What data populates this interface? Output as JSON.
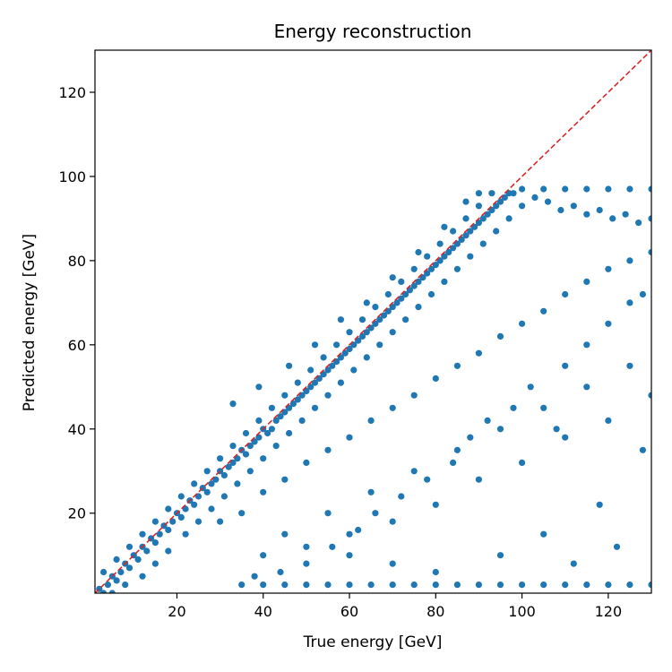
{
  "chart_data": {
    "type": "scatter",
    "title": "Energy reconstruction",
    "xlabel": "True energy [GeV]",
    "ylabel": "Predicted energy [GeV]",
    "xlim": [
      1,
      130
    ],
    "ylim": [
      1,
      130
    ],
    "xticks": [
      20,
      40,
      60,
      80,
      100,
      120
    ],
    "yticks": [
      20,
      40,
      60,
      80,
      100,
      120
    ],
    "grid": false,
    "colors": {
      "points": "#1f77b4",
      "reference_line": "#d62728",
      "axes": "#000000"
    },
    "reference_line": {
      "style": "dashed",
      "from": [
        1,
        1
      ],
      "to": [
        130,
        130
      ]
    },
    "series": [
      {
        "values_note_free": true,
        "points": [
          [
            2,
            2
          ],
          [
            3,
            1
          ],
          [
            4,
            3
          ],
          [
            5,
            5
          ],
          [
            6,
            4
          ],
          [
            7,
            6
          ],
          [
            8,
            8
          ],
          [
            9,
            7
          ],
          [
            10,
            10
          ],
          [
            11,
            9
          ],
          [
            12,
            12
          ],
          [
            13,
            11
          ],
          [
            14,
            14
          ],
          [
            15,
            13
          ],
          [
            16,
            15
          ],
          [
            17,
            17
          ],
          [
            18,
            16
          ],
          [
            19,
            18
          ],
          [
            20,
            20
          ],
          [
            21,
            19
          ],
          [
            22,
            21
          ],
          [
            23,
            23
          ],
          [
            24,
            22
          ],
          [
            25,
            24
          ],
          [
            26,
            26
          ],
          [
            27,
            25
          ],
          [
            28,
            27
          ],
          [
            29,
            28
          ],
          [
            30,
            30
          ],
          [
            31,
            29
          ],
          [
            32,
            31
          ],
          [
            33,
            32
          ],
          [
            34,
            33
          ],
          [
            35,
            35
          ],
          [
            36,
            34
          ],
          [
            37,
            36
          ],
          [
            38,
            37
          ],
          [
            39,
            38
          ],
          [
            40,
            40
          ],
          [
            41,
            39
          ],
          [
            42,
            40
          ],
          [
            43,
            42
          ],
          [
            44,
            43
          ],
          [
            45,
            44
          ],
          [
            46,
            45
          ],
          [
            47,
            46
          ],
          [
            48,
            47
          ],
          [
            49,
            48
          ],
          [
            50,
            49
          ],
          [
            51,
            50
          ],
          [
            52,
            51
          ],
          [
            53,
            52
          ],
          [
            54,
            53
          ],
          [
            55,
            54
          ],
          [
            56,
            55
          ],
          [
            57,
            56
          ],
          [
            58,
            57
          ],
          [
            59,
            58
          ],
          [
            60,
            59
          ],
          [
            61,
            60
          ],
          [
            62,
            61
          ],
          [
            63,
            62
          ],
          [
            64,
            63
          ],
          [
            65,
            64
          ],
          [
            66,
            65
          ],
          [
            67,
            66
          ],
          [
            68,
            67
          ],
          [
            69,
            68
          ],
          [
            70,
            69
          ],
          [
            71,
            70
          ],
          [
            72,
            71
          ],
          [
            73,
            72
          ],
          [
            74,
            73
          ],
          [
            75,
            74
          ],
          [
            76,
            75
          ],
          [
            77,
            76
          ],
          [
            78,
            77
          ],
          [
            79,
            78
          ],
          [
            80,
            79
          ],
          [
            81,
            80
          ],
          [
            82,
            81
          ],
          [
            83,
            82
          ],
          [
            84,
            83
          ],
          [
            85,
            84
          ],
          [
            86,
            85
          ],
          [
            87,
            86
          ],
          [
            88,
            87
          ],
          [
            89,
            88
          ],
          [
            90,
            89
          ],
          [
            91,
            90
          ],
          [
            92,
            91
          ],
          [
            93,
            92
          ],
          [
            94,
            93
          ],
          [
            95,
            94
          ],
          [
            96,
            95
          ],
          [
            97,
            96
          ],
          [
            98,
            96
          ],
          [
            100,
            97
          ],
          [
            105,
            97
          ],
          [
            110,
            97
          ],
          [
            115,
            97
          ],
          [
            120,
            97
          ],
          [
            125,
            97
          ],
          [
            130,
            97
          ],
          [
            5,
            1
          ],
          [
            8,
            3
          ],
          [
            12,
            5
          ],
          [
            15,
            8
          ],
          [
            18,
            11
          ],
          [
            22,
            15
          ],
          [
            25,
            18
          ],
          [
            28,
            21
          ],
          [
            31,
            24
          ],
          [
            34,
            27
          ],
          [
            37,
            30
          ],
          [
            40,
            33
          ],
          [
            43,
            36
          ],
          [
            46,
            39
          ],
          [
            49,
            42
          ],
          [
            52,
            45
          ],
          [
            55,
            48
          ],
          [
            58,
            51
          ],
          [
            61,
            54
          ],
          [
            64,
            57
          ],
          [
            67,
            60
          ],
          [
            70,
            63
          ],
          [
            73,
            66
          ],
          [
            76,
            69
          ],
          [
            79,
            72
          ],
          [
            82,
            75
          ],
          [
            85,
            78
          ],
          [
            88,
            81
          ],
          [
            91,
            84
          ],
          [
            94,
            87
          ],
          [
            97,
            90
          ],
          [
            100,
            93
          ],
          [
            103,
            95
          ],
          [
            106,
            94
          ],
          [
            109,
            92
          ],
          [
            112,
            93
          ],
          [
            115,
            91
          ],
          [
            118,
            92
          ],
          [
            121,
            90
          ],
          [
            124,
            91
          ],
          [
            127,
            89
          ],
          [
            130,
            90
          ],
          [
            3,
            6
          ],
          [
            6,
            9
          ],
          [
            9,
            12
          ],
          [
            12,
            15
          ],
          [
            15,
            18
          ],
          [
            18,
            21
          ],
          [
            21,
            24
          ],
          [
            24,
            27
          ],
          [
            27,
            30
          ],
          [
            30,
            33
          ],
          [
            33,
            36
          ],
          [
            36,
            39
          ],
          [
            39,
            42
          ],
          [
            42,
            45
          ],
          [
            45,
            48
          ],
          [
            48,
            51
          ],
          [
            51,
            54
          ],
          [
            54,
            57
          ],
          [
            57,
            60
          ],
          [
            60,
            63
          ],
          [
            63,
            66
          ],
          [
            66,
            69
          ],
          [
            69,
            72
          ],
          [
            72,
            75
          ],
          [
            75,
            78
          ],
          [
            78,
            81
          ],
          [
            81,
            84
          ],
          [
            84,
            87
          ],
          [
            87,
            90
          ],
          [
            90,
            93
          ],
          [
            93,
            96
          ],
          [
            30,
            18
          ],
          [
            35,
            20
          ],
          [
            40,
            25
          ],
          [
            45,
            28
          ],
          [
            50,
            32
          ],
          [
            55,
            35
          ],
          [
            60,
            38
          ],
          [
            65,
            42
          ],
          [
            70,
            45
          ],
          [
            75,
            48
          ],
          [
            80,
            52
          ],
          [
            85,
            55
          ],
          [
            90,
            58
          ],
          [
            95,
            62
          ],
          [
            100,
            65
          ],
          [
            105,
            68
          ],
          [
            110,
            72
          ],
          [
            115,
            75
          ],
          [
            120,
            78
          ],
          [
            125,
            80
          ],
          [
            130,
            82
          ],
          [
            40,
            10
          ],
          [
            45,
            15
          ],
          [
            50,
            12
          ],
          [
            55,
            20
          ],
          [
            60,
            15
          ],
          [
            65,
            25
          ],
          [
            70,
            18
          ],
          [
            75,
            30
          ],
          [
            80,
            22
          ],
          [
            85,
            35
          ],
          [
            90,
            28
          ],
          [
            95,
            40
          ],
          [
            100,
            32
          ],
          [
            105,
            45
          ],
          [
            110,
            38
          ],
          [
            115,
            50
          ],
          [
            120,
            42
          ],
          [
            125,
            55
          ],
          [
            130,
            48
          ],
          [
            35,
            3
          ],
          [
            40,
            3
          ],
          [
            45,
            3
          ],
          [
            50,
            3
          ],
          [
            55,
            3
          ],
          [
            60,
            3
          ],
          [
            65,
            3
          ],
          [
            70,
            3
          ],
          [
            75,
            3
          ],
          [
            80,
            3
          ],
          [
            85,
            3
          ],
          [
            90,
            3
          ],
          [
            95,
            3
          ],
          [
            100,
            3
          ],
          [
            105,
            3
          ],
          [
            110,
            3
          ],
          [
            115,
            3
          ],
          [
            120,
            3
          ],
          [
            125,
            3
          ],
          [
            130,
            3
          ],
          [
            33,
            46
          ],
          [
            39,
            50
          ],
          [
            46,
            55
          ],
          [
            52,
            60
          ],
          [
            58,
            66
          ],
          [
            64,
            70
          ],
          [
            70,
            76
          ],
          [
            76,
            82
          ],
          [
            82,
            88
          ],
          [
            87,
            94
          ],
          [
            90,
            96
          ],
          [
            60,
            10
          ],
          [
            70,
            8
          ],
          [
            80,
            6
          ],
          [
            95,
            10
          ],
          [
            105,
            15
          ],
          [
            112,
            8
          ],
          [
            118,
            22
          ],
          [
            122,
            12
          ],
          [
            128,
            35
          ],
          [
            110,
            55
          ],
          [
            115,
            60
          ],
          [
            120,
            65
          ],
          [
            125,
            70
          ],
          [
            128,
            72
          ],
          [
            108,
            40
          ],
          [
            102,
            50
          ],
          [
            98,
            45
          ],
          [
            92,
            42
          ],
          [
            88,
            38
          ],
          [
            84,
            32
          ],
          [
            78,
            28
          ],
          [
            72,
            24
          ],
          [
            66,
            20
          ],
          [
            62,
            16
          ],
          [
            56,
            12
          ],
          [
            50,
            8
          ],
          [
            44,
            6
          ],
          [
            38,
            5
          ]
        ]
      }
    ]
  }
}
